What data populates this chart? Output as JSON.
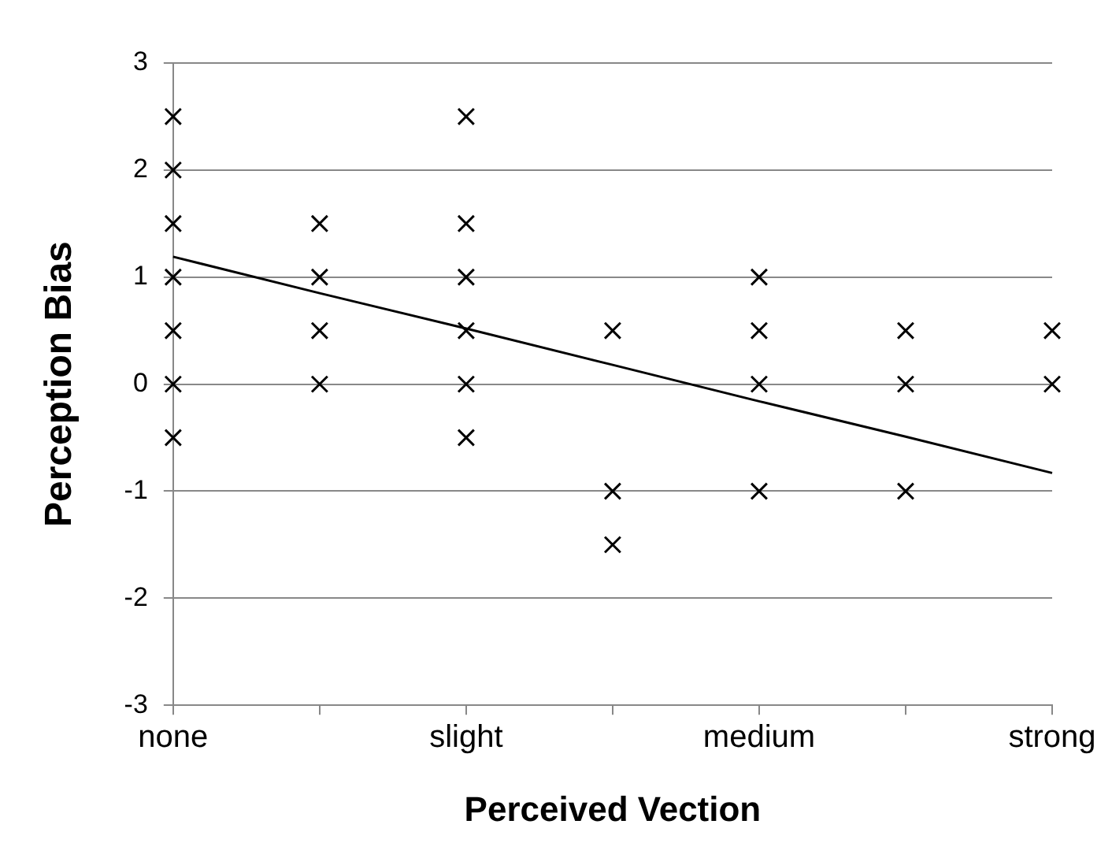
{
  "chart_data": {
    "type": "scatter",
    "xlabel": "Perceived Vection",
    "ylabel": "Perception Bias",
    "categories": [
      "none",
      null,
      "slight",
      null,
      "medium",
      null,
      "strong"
    ],
    "ylim": [
      -3,
      3
    ],
    "yticks": [
      -3,
      -2,
      -1,
      0,
      1,
      2,
      3
    ],
    "grid": "y",
    "legend": false,
    "marker": "cross",
    "series": [
      {
        "color": "#000000",
        "values": [
          2.5,
          1.5,
          2.5,
          0.5,
          1,
          0.5,
          0.5
        ]
      },
      {
        "color": "#000000",
        "values": [
          2,
          1,
          1.5,
          -1,
          0.5,
          0,
          0
        ]
      },
      {
        "color": "#000000",
        "values": [
          1.5,
          0.5,
          1,
          -1.5,
          0,
          -1,
          null
        ]
      },
      {
        "color": "#000000",
        "values": [
          1,
          0,
          0.5,
          null,
          -1,
          null,
          null
        ]
      },
      {
        "color": "#000000",
        "values": [
          0.5,
          null,
          0,
          null,
          null,
          null,
          null
        ]
      },
      {
        "color": "#000000",
        "values": [
          0,
          null,
          -0.5,
          null,
          null,
          null,
          null
        ]
      },
      {
        "color": "#000000",
        "values": [
          -0.5,
          null,
          null,
          null,
          null,
          null,
          null
        ]
      },
      {
        "type": "line",
        "color": "#000000",
        "marker": "none",
        "values": [
          1.19,
          0.85,
          0.52,
          0.18,
          -0.16,
          -0.49,
          -0.83
        ]
      }
    ]
  }
}
